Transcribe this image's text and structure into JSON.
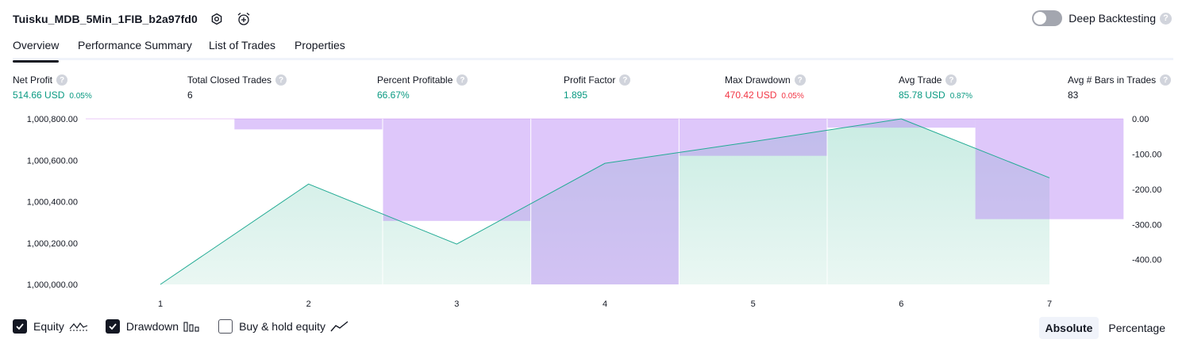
{
  "header": {
    "title": "Tuisku_MDB_5Min_1FIB_b2a97fd0",
    "icons": [
      "settings-icon",
      "alarm-add-icon"
    ]
  },
  "deep_backtesting": {
    "label": "Deep Backtesting",
    "enabled": false,
    "help": "?"
  },
  "tabs": [
    {
      "label": "Overview",
      "active": true
    },
    {
      "label": "Performance Summary",
      "active": false
    },
    {
      "label": "List of Trades",
      "active": false
    },
    {
      "label": "Properties",
      "active": false
    }
  ],
  "stats": {
    "net_profit": {
      "label": "Net Profit",
      "value": "514.66 USD",
      "pct": "0.05%"
    },
    "total_closed_trades": {
      "label": "Total Closed Trades",
      "value": "6"
    },
    "percent_profitable": {
      "label": "Percent Profitable",
      "value": "66.67%"
    },
    "profit_factor": {
      "label": "Profit Factor",
      "value": "1.895"
    },
    "max_drawdown": {
      "label": "Max Drawdown",
      "value": "470.42 USD",
      "pct": "0.05%"
    },
    "avg_trade": {
      "label": "Avg Trade",
      "value": "85.78 USD",
      "pct": "0.87%"
    },
    "avg_bars": {
      "label": "Avg # Bars in Trades",
      "value": "83"
    }
  },
  "chart_data": {
    "type": "line",
    "x": [
      1,
      2,
      3,
      4,
      5,
      6,
      7
    ],
    "x_ticks": [
      "1",
      "2",
      "3",
      "4",
      "5",
      "6",
      "7"
    ],
    "equity": {
      "name": "Equity",
      "values": [
        1000000,
        1000485,
        1000195,
        1000585,
        1000690,
        1000800,
        1000515
      ],
      "color": "#22ab94",
      "fill": "#dff4ef"
    },
    "drawdown": {
      "name": "Drawdown",
      "color": "#e1c3fc",
      "bars": [
        {
          "from": 1,
          "to": 1.5,
          "value": 0
        },
        {
          "from": 1.5,
          "to": 2.5,
          "value": -30
        },
        {
          "from": 2.5,
          "to": 3.5,
          "value": -290
        },
        {
          "from": 3.5,
          "to": 4.5,
          "value": -470.42
        },
        {
          "from": 4.5,
          "to": 5.5,
          "value": -105
        },
        {
          "from": 5.5,
          "to": 6.5,
          "value": -25
        },
        {
          "from": 6.5,
          "to": 7.5,
          "value": -285
        }
      ]
    },
    "y_left": {
      "ticks": [
        "1,000,800.00",
        "1,000,600.00",
        "1,000,400.00",
        "1,000,200.00",
        "1,000,000.00"
      ],
      "values": [
        1000800,
        1000600,
        1000400,
        1000200,
        1000000
      ],
      "range": [
        1000000,
        1000800
      ]
    },
    "y_right": {
      "ticks": [
        "0.00",
        "-100.00",
        "-200.00",
        "-300.00",
        "-400.00"
      ],
      "values": [
        0,
        -100,
        -200,
        -300,
        -400
      ],
      "range": [
        -470.42,
        0
      ]
    },
    "grid": false
  },
  "legend": {
    "equity": {
      "label": "Equity",
      "checked": true
    },
    "drawdown": {
      "label": "Drawdown",
      "checked": true
    },
    "buy_hold": {
      "label": "Buy & hold equity",
      "checked": false
    }
  },
  "mode": {
    "absolute": "Absolute",
    "percentage": "Percentage",
    "selected": "Absolute"
  }
}
